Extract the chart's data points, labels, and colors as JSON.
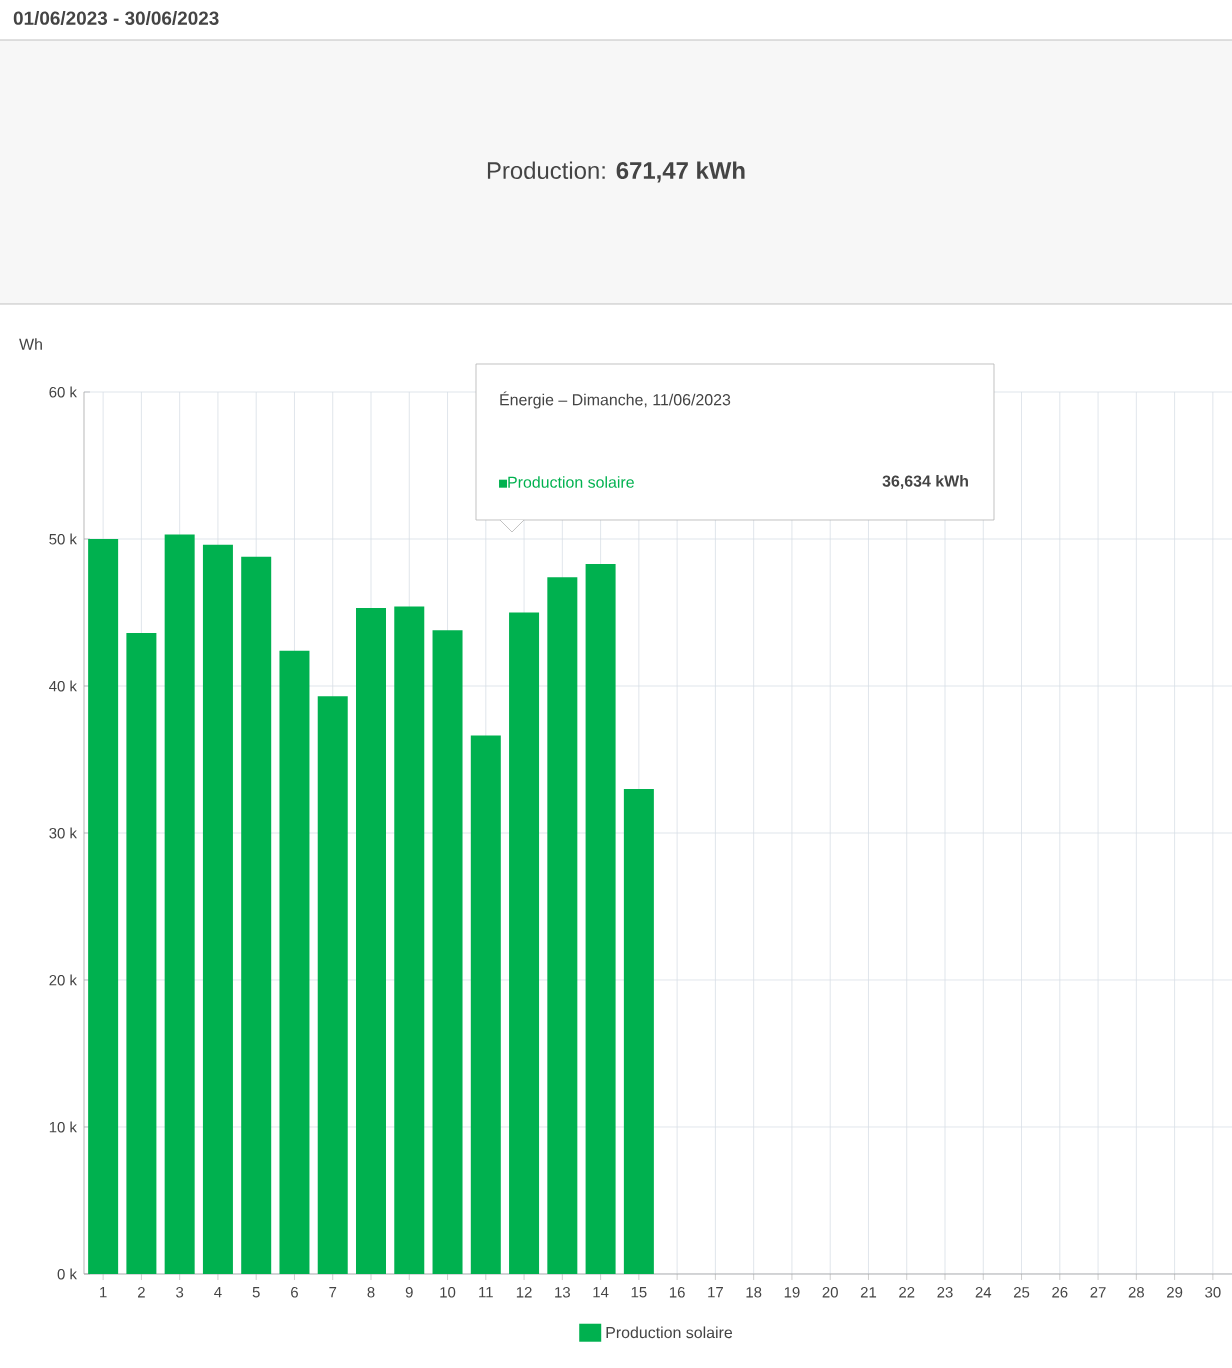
{
  "chart_data": {
    "type": "bar",
    "title": "01/06/2023 - 30/06/2023",
    "subtitle": "Production:  **671,47 kWh**",
    "categories": [
      "1",
      "2",
      "3",
      "4",
      "5",
      "6",
      "7",
      "8",
      "9",
      "10",
      "11",
      "12",
      "13",
      "14",
      "15",
      "16",
      "17",
      "18",
      "19",
      "20",
      "21",
      "22",
      "23",
      "24",
      "25",
      "26",
      "27",
      "28",
      "29",
      "30"
    ],
    "series": [
      {
        "name": "Production solaire",
        "color": "#00b14f",
        "values": [
          50.0,
          43.6,
          50.3,
          49.6,
          48.8,
          42.4,
          39.3,
          45.3,
          45.4,
          43.8,
          36.634,
          45.0,
          47.4,
          48.3,
          33.0,
          null,
          null,
          null,
          null,
          null,
          null,
          null,
          null,
          null,
          null,
          null,
          null,
          null,
          null,
          null
        ]
      }
    ],
    "ylim": [
      0,
      60
    ],
    "yticks": [
      {
        "value": 0,
        "label": "0 k"
      },
      {
        "value": 10,
        "label": "10 k"
      },
      {
        "value": 20,
        "label": "20 k"
      },
      {
        "value": 30,
        "label": "30 k"
      },
      {
        "value": 40,
        "label": "40 k"
      },
      {
        "value": 50,
        "label": "50 k"
      },
      {
        "value": 60,
        "label": "60 k"
      }
    ],
    "annotations": [
      "Wh",
      "Énergie – Dimanche, 11/06/2023",
      "Production solaire",
      "36,634 kWh"
    ],
    "grid": true,
    "legend": "bottom"
  }
}
